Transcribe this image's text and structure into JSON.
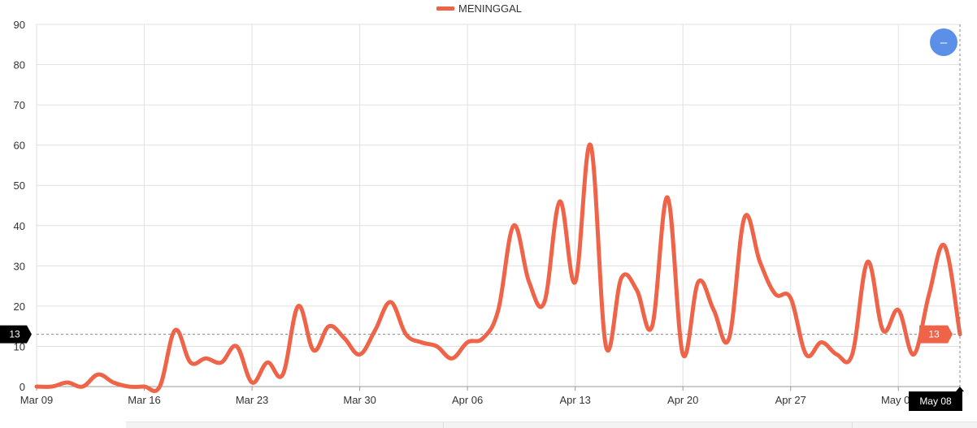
{
  "chart_data": {
    "type": "line",
    "legend": {
      "label": "MENINGGAL",
      "placement": "top-center"
    },
    "colors": {
      "series": "#ef6348",
      "accent_button": "#5b8fe8",
      "tooltip_dark": "#000000",
      "grid": "#e0e0e0"
    },
    "ylim": [
      0,
      90
    ],
    "y_ticks": [
      "0",
      "10",
      "20",
      "30",
      "40",
      "50",
      "60",
      "70",
      "80",
      "90"
    ],
    "x_ticks": [
      "Mar 09",
      "Mar 16",
      "Mar 23",
      "Mar 30",
      "Apr 06",
      "Apr 13",
      "Apr 20",
      "Apr 27",
      "May 04"
    ],
    "grid": true,
    "series": [
      {
        "name": "MENINGGAL",
        "x": [
          "Mar 09",
          "Mar 10",
          "Mar 11",
          "Mar 12",
          "Mar 13",
          "Mar 14",
          "Mar 15",
          "Mar 16",
          "Mar 17",
          "Mar 18",
          "Mar 19",
          "Mar 20",
          "Mar 21",
          "Mar 22",
          "Mar 23",
          "Mar 24",
          "Mar 25",
          "Mar 26",
          "Mar 27",
          "Mar 28",
          "Mar 29",
          "Mar 30",
          "Mar 31",
          "Apr 01",
          "Apr 02",
          "Apr 03",
          "Apr 04",
          "Apr 05",
          "Apr 06",
          "Apr 07",
          "Apr 08",
          "Apr 09",
          "Apr 10",
          "Apr 11",
          "Apr 12",
          "Apr 13",
          "Apr 14",
          "Apr 15",
          "Apr 16",
          "Apr 17",
          "Apr 18",
          "Apr 19",
          "Apr 20",
          "Apr 21",
          "Apr 22",
          "Apr 23",
          "Apr 24",
          "Apr 25",
          "Apr 26",
          "Apr 27",
          "Apr 28",
          "Apr 29",
          "Apr 30",
          "May 01",
          "May 02",
          "May 03",
          "May 04",
          "May 05",
          "May 06",
          "May 07",
          "May 08"
        ],
        "values": [
          0,
          0,
          1,
          0,
          3,
          1,
          0,
          0,
          0,
          14,
          6,
          7,
          6,
          10,
          1,
          6,
          3,
          20,
          9,
          15,
          12,
          8,
          14,
          21,
          13,
          11,
          10,
          7,
          11,
          12,
          19,
          40,
          26,
          21,
          46,
          26,
          60,
          10,
          27,
          24,
          15,
          47,
          8,
          26,
          19,
          12,
          42,
          31,
          23,
          22,
          8,
          11,
          8,
          8,
          31,
          14,
          19,
          8,
          23,
          35,
          13
        ]
      }
    ],
    "crosshair": {
      "y_value": "13",
      "x_value": "May 08",
      "point_value": "13"
    },
    "controls": {
      "zoom_out_symbol": "–"
    }
  }
}
